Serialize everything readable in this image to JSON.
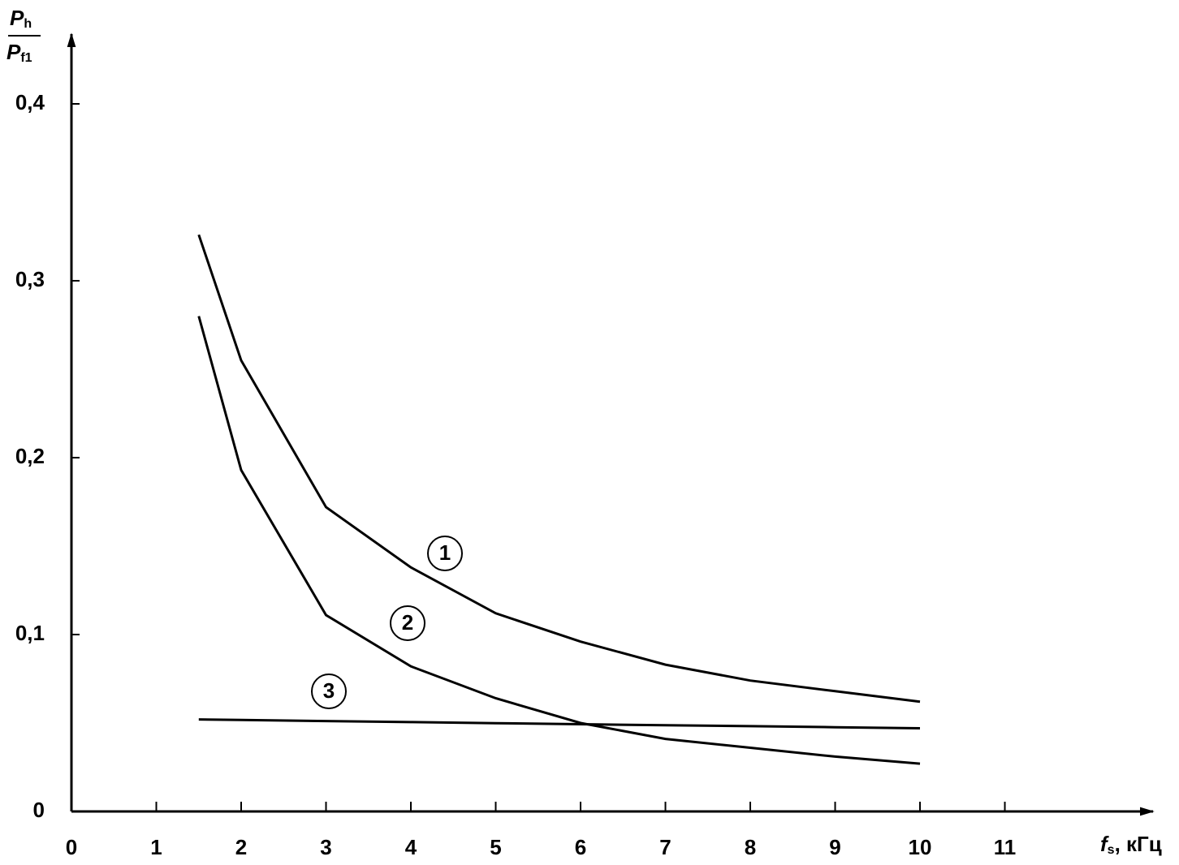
{
  "chart_data": {
    "type": "line",
    "ylabel_parts": {
      "numerator": [
        "P",
        "h"
      ],
      "denominator": [
        "P",
        "f1"
      ]
    },
    "xlabel_parts": [
      "f",
      "s",
      ", кГц"
    ],
    "x": [
      1.5,
      2,
      3,
      4,
      5,
      6,
      7,
      8,
      9,
      10
    ],
    "series": [
      {
        "name": "1",
        "color": "#000000",
        "values": [
          0.326,
          0.255,
          0.172,
          0.138,
          0.112,
          0.096,
          0.083,
          0.074,
          0.068,
          0.062
        ]
      },
      {
        "name": "2",
        "color": "#000000",
        "values": [
          0.28,
          0.193,
          0.111,
          0.082,
          0.064,
          0.05,
          0.041,
          0.036,
          0.031,
          0.027
        ]
      },
      {
        "name": "3",
        "color": "#000000",
        "values": [
          0.052,
          0.0517,
          0.0511,
          0.0505,
          0.0499,
          0.0493,
          0.0487,
          0.0482,
          0.0476,
          0.047
        ]
      }
    ],
    "xlim": [
      0,
      12.75
    ],
    "ylim": [
      0,
      0.44
    ],
    "xticks": [
      0,
      1,
      2,
      3,
      4,
      5,
      6,
      7,
      8,
      9,
      10,
      11
    ],
    "yticks": [
      0,
      {
        "value": 0.1,
        "label": "0,1"
      },
      {
        "value": 0.2,
        "label": "0,2"
      },
      {
        "value": 0.3,
        "label": "0,3"
      },
      {
        "value": 0.4,
        "label": "0,4"
      }
    ],
    "grid": false
  }
}
